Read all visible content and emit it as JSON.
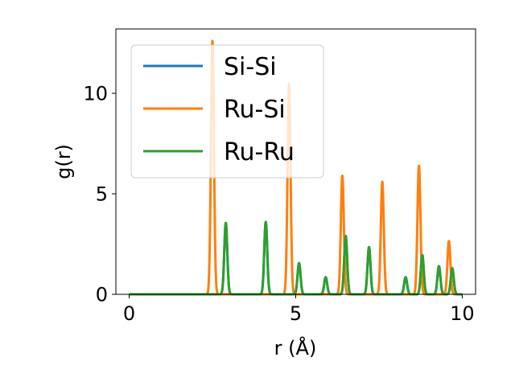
{
  "chart_data": {
    "type": "line",
    "xlabel": "r (Å)",
    "ylabel": "g(r)",
    "xlim": [
      -0.4,
      10.4
    ],
    "ylim": [
      0,
      13.2
    ],
    "xticks": [
      0,
      5,
      10
    ],
    "xtick_labels": [
      "0",
      "5",
      "10"
    ],
    "yticks": [
      0,
      5,
      10
    ],
    "ytick_labels": [
      "0",
      "5",
      "10"
    ],
    "grid": false,
    "legend_position": "upper-left",
    "series": [
      {
        "name": "Si-Si",
        "color": "#1f77b4",
        "peaks": [
          [
            2.9,
            3.55
          ],
          [
            4.1,
            3.6
          ],
          [
            5.1,
            1.55
          ],
          [
            5.9,
            0.85
          ],
          [
            6.5,
            2.9
          ],
          [
            7.2,
            2.35
          ],
          [
            8.3,
            0.85
          ],
          [
            8.8,
            1.95
          ],
          [
            9.3,
            1.4
          ],
          [
            9.7,
            1.3
          ]
        ]
      },
      {
        "name": "Ru-Si",
        "color": "#ff7f0e",
        "peaks": [
          [
            2.5,
            12.6
          ],
          [
            4.8,
            10.45
          ],
          [
            6.4,
            5.9
          ],
          [
            7.6,
            5.6
          ],
          [
            8.7,
            6.4
          ],
          [
            9.6,
            2.65
          ]
        ]
      },
      {
        "name": "Ru-Ru",
        "color": "#2ca02c",
        "peaks": [
          [
            2.9,
            3.55
          ],
          [
            4.1,
            3.6
          ],
          [
            5.1,
            1.55
          ],
          [
            5.9,
            0.85
          ],
          [
            6.5,
            2.9
          ],
          [
            7.2,
            2.35
          ],
          [
            8.3,
            0.85
          ],
          [
            8.8,
            1.95
          ],
          [
            9.3,
            1.4
          ],
          [
            9.7,
            1.3
          ]
        ]
      }
    ]
  }
}
